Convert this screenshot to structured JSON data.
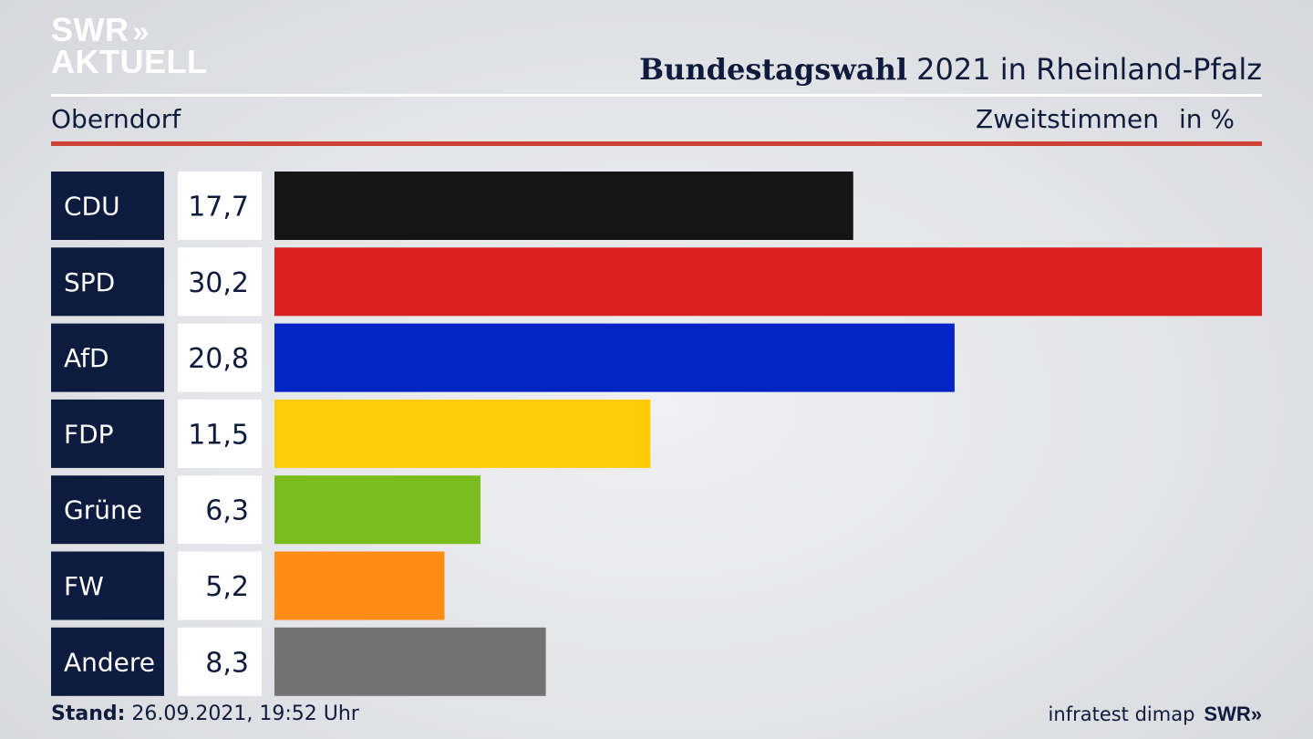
{
  "logo": {
    "line1": "SWR",
    "line2": "AKTUELL",
    "arrows": "»"
  },
  "header": {
    "title_bold": "Bundestagswahl",
    "title_rest": "2021 in Rheinland-Pfalz",
    "location": "Oberndorf",
    "measure": "Zweitstimmen",
    "unit": "in %"
  },
  "chart_data": {
    "type": "bar",
    "orientation": "horizontal",
    "categories": [
      "CDU",
      "SPD",
      "AfD",
      "FDP",
      "Grüne",
      "FW",
      "Andere"
    ],
    "values": [
      17.7,
      30.2,
      20.8,
      11.5,
      6.3,
      5.2,
      8.3
    ],
    "value_labels": [
      "17,7",
      "30,2",
      "20,8",
      "11,5",
      "6,3",
      "5,2",
      "8,3"
    ],
    "colors": [
      "#151515",
      "#d8201f",
      "#0424c6",
      "#fecc0a",
      "#79bd1c",
      "#fd8c17",
      "#737374"
    ],
    "label_bg": "#0d1b3e",
    "xlim": [
      0,
      30.2
    ]
  },
  "footer": {
    "stand_label": "Stand:",
    "stand_value": "26.09.2021, 19:52 Uhr",
    "source": "infratest dimap",
    "brand": "SWR"
  }
}
